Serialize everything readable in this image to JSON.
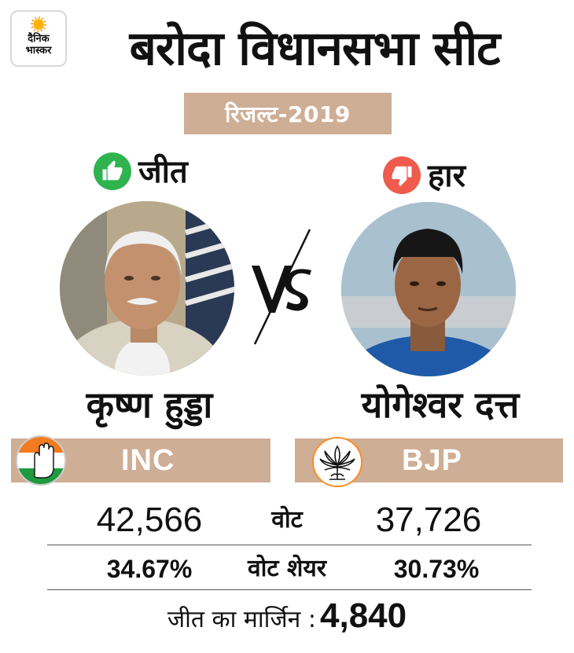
{
  "brand": {
    "logo_line1": "दैनिक",
    "logo_line2": "भास्कर"
  },
  "header": {
    "title": "बरोदा विधानसभा सीट",
    "subtitle": "रिजल्ट-2019"
  },
  "winner": {
    "status": "जीत",
    "status_icon": "thumbs-up-icon",
    "name": "कृष्ण हुड्डा",
    "party": "INC",
    "party_symbol": "hand-symbol-icon",
    "votes": "42,566",
    "vote_share": "34.67%"
  },
  "loser": {
    "status": "हार",
    "status_icon": "thumbs-down-icon",
    "name": "योगेश्वर दत्त",
    "party": "BJP",
    "party_symbol": "lotus-symbol-icon",
    "votes": "37,726",
    "vote_share": "30.73%"
  },
  "labels": {
    "votes": "वोट",
    "vote_share": "वोट शेयर",
    "margin": "जीत का मार्जिन :"
  },
  "margin_value": "4,840",
  "colors": {
    "tan": "#cfae96",
    "win_green": "#2fb34f",
    "loss_red": "#ef5b4c",
    "text": "#111111"
  }
}
